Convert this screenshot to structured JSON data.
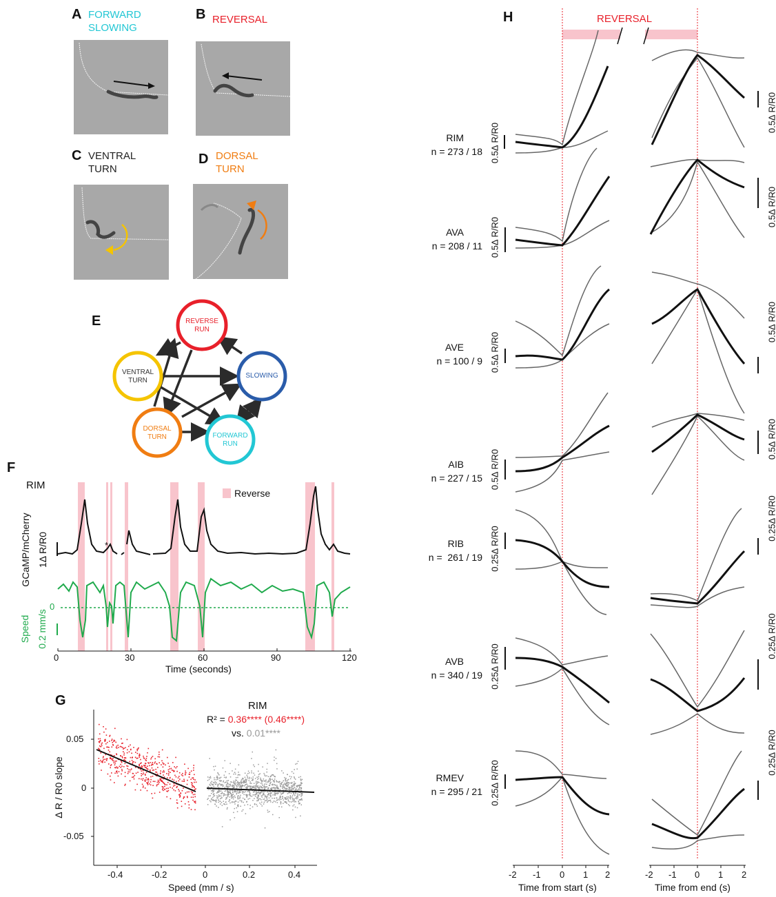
{
  "panels": {
    "A": {
      "letter": "A",
      "label_lines": [
        "FORWARD",
        "SLOWING"
      ],
      "color": "#22c7d4"
    },
    "B": {
      "letter": "B",
      "label_lines": [
        "REVERSAL"
      ],
      "color": "#e8202a"
    },
    "C": {
      "letter": "C",
      "label_lines": [
        "VENTRAL",
        "TURN"
      ],
      "color": "#222222"
    },
    "D": {
      "letter": "D",
      "label_lines": [
        "DORSAL",
        "TURN"
      ],
      "color": "#f07d12"
    },
    "E": {
      "letter": "E"
    },
    "F": {
      "letter": "F"
    },
    "G": {
      "letter": "G"
    },
    "H": {
      "letter": "H"
    }
  },
  "state_graph": {
    "nodes": [
      {
        "id": "reverse",
        "lines": [
          "REVERSE",
          "RUN"
        ],
        "color": "#e8202a"
      },
      {
        "id": "ventral",
        "lines": [
          "VENTRAL",
          "TURN"
        ],
        "color": "#f5c400",
        "text_color": "#333333"
      },
      {
        "id": "slowing",
        "lines": [
          "SLOWING"
        ],
        "color": "#2a5caa"
      },
      {
        "id": "dorsal",
        "lines": [
          "DORSAL",
          "TURN"
        ],
        "color": "#f07d12"
      },
      {
        "id": "forward",
        "lines": [
          "FORWARD",
          "RUN"
        ],
        "color": "#22c7d4"
      }
    ]
  },
  "panel_f": {
    "neuron": "RIM",
    "legend": "Reverse",
    "reverse_color": "#f8c4cc",
    "y_label_top": "GCaMP/mCherry",
    "scale_top": "1Δ R/R0",
    "y_label_bottom": "Speed",
    "scale_bottom": "0.2 mm/s",
    "zero_label": "0",
    "asterisk": "*",
    "xlabel": "Time (seconds)",
    "xticks": [
      "0",
      "30",
      "60",
      "90",
      "120"
    ]
  },
  "panel_g": {
    "title": "RIM",
    "r2_prefix": "R² = ",
    "r2_red": "0.36**** (0.46****)",
    "vs_prefix": "vs. ",
    "r2_gray": "0.01****",
    "ylabel": "Δ R / R0 slope",
    "xlabel": "Speed (mm / s)",
    "xticks": [
      "-0.4",
      "-0.2",
      "0",
      "0.2",
      "0.4"
    ],
    "yticks": [
      "0.05",
      "0",
      "-0.05"
    ]
  },
  "panel_h": {
    "title": "REVERSAL",
    "xlabel_start": "Time from start (s)",
    "xlabel_end": "Time from end (s)",
    "xticks": [
      "-2",
      "-1",
      "0",
      "1",
      "2"
    ],
    "rows": [
      {
        "name": "RIM",
        "n": "n = 273 / 18",
        "scale": "0.5Δ R/R0"
      },
      {
        "name": "AVA",
        "n": "n = 208 / 11",
        "scale": "0.5Δ R/R0"
      },
      {
        "name": "AVE",
        "n": "n = 100 / 9",
        "scale": "0.5Δ R/R0"
      },
      {
        "name": "AIB",
        "n": "n = 227 / 15",
        "scale": "0.5Δ R/R0"
      },
      {
        "name": "RIB",
        "n": "n =  261 / 19",
        "scale": "0.25Δ R/R0"
      },
      {
        "name": "AVB",
        "n": "n = 340 / 19",
        "scale": "0.25Δ R/R0"
      },
      {
        "name": "RMEV",
        "n": "n = 295 / 21",
        "scale": "0.25Δ R/R0"
      }
    ]
  }
}
